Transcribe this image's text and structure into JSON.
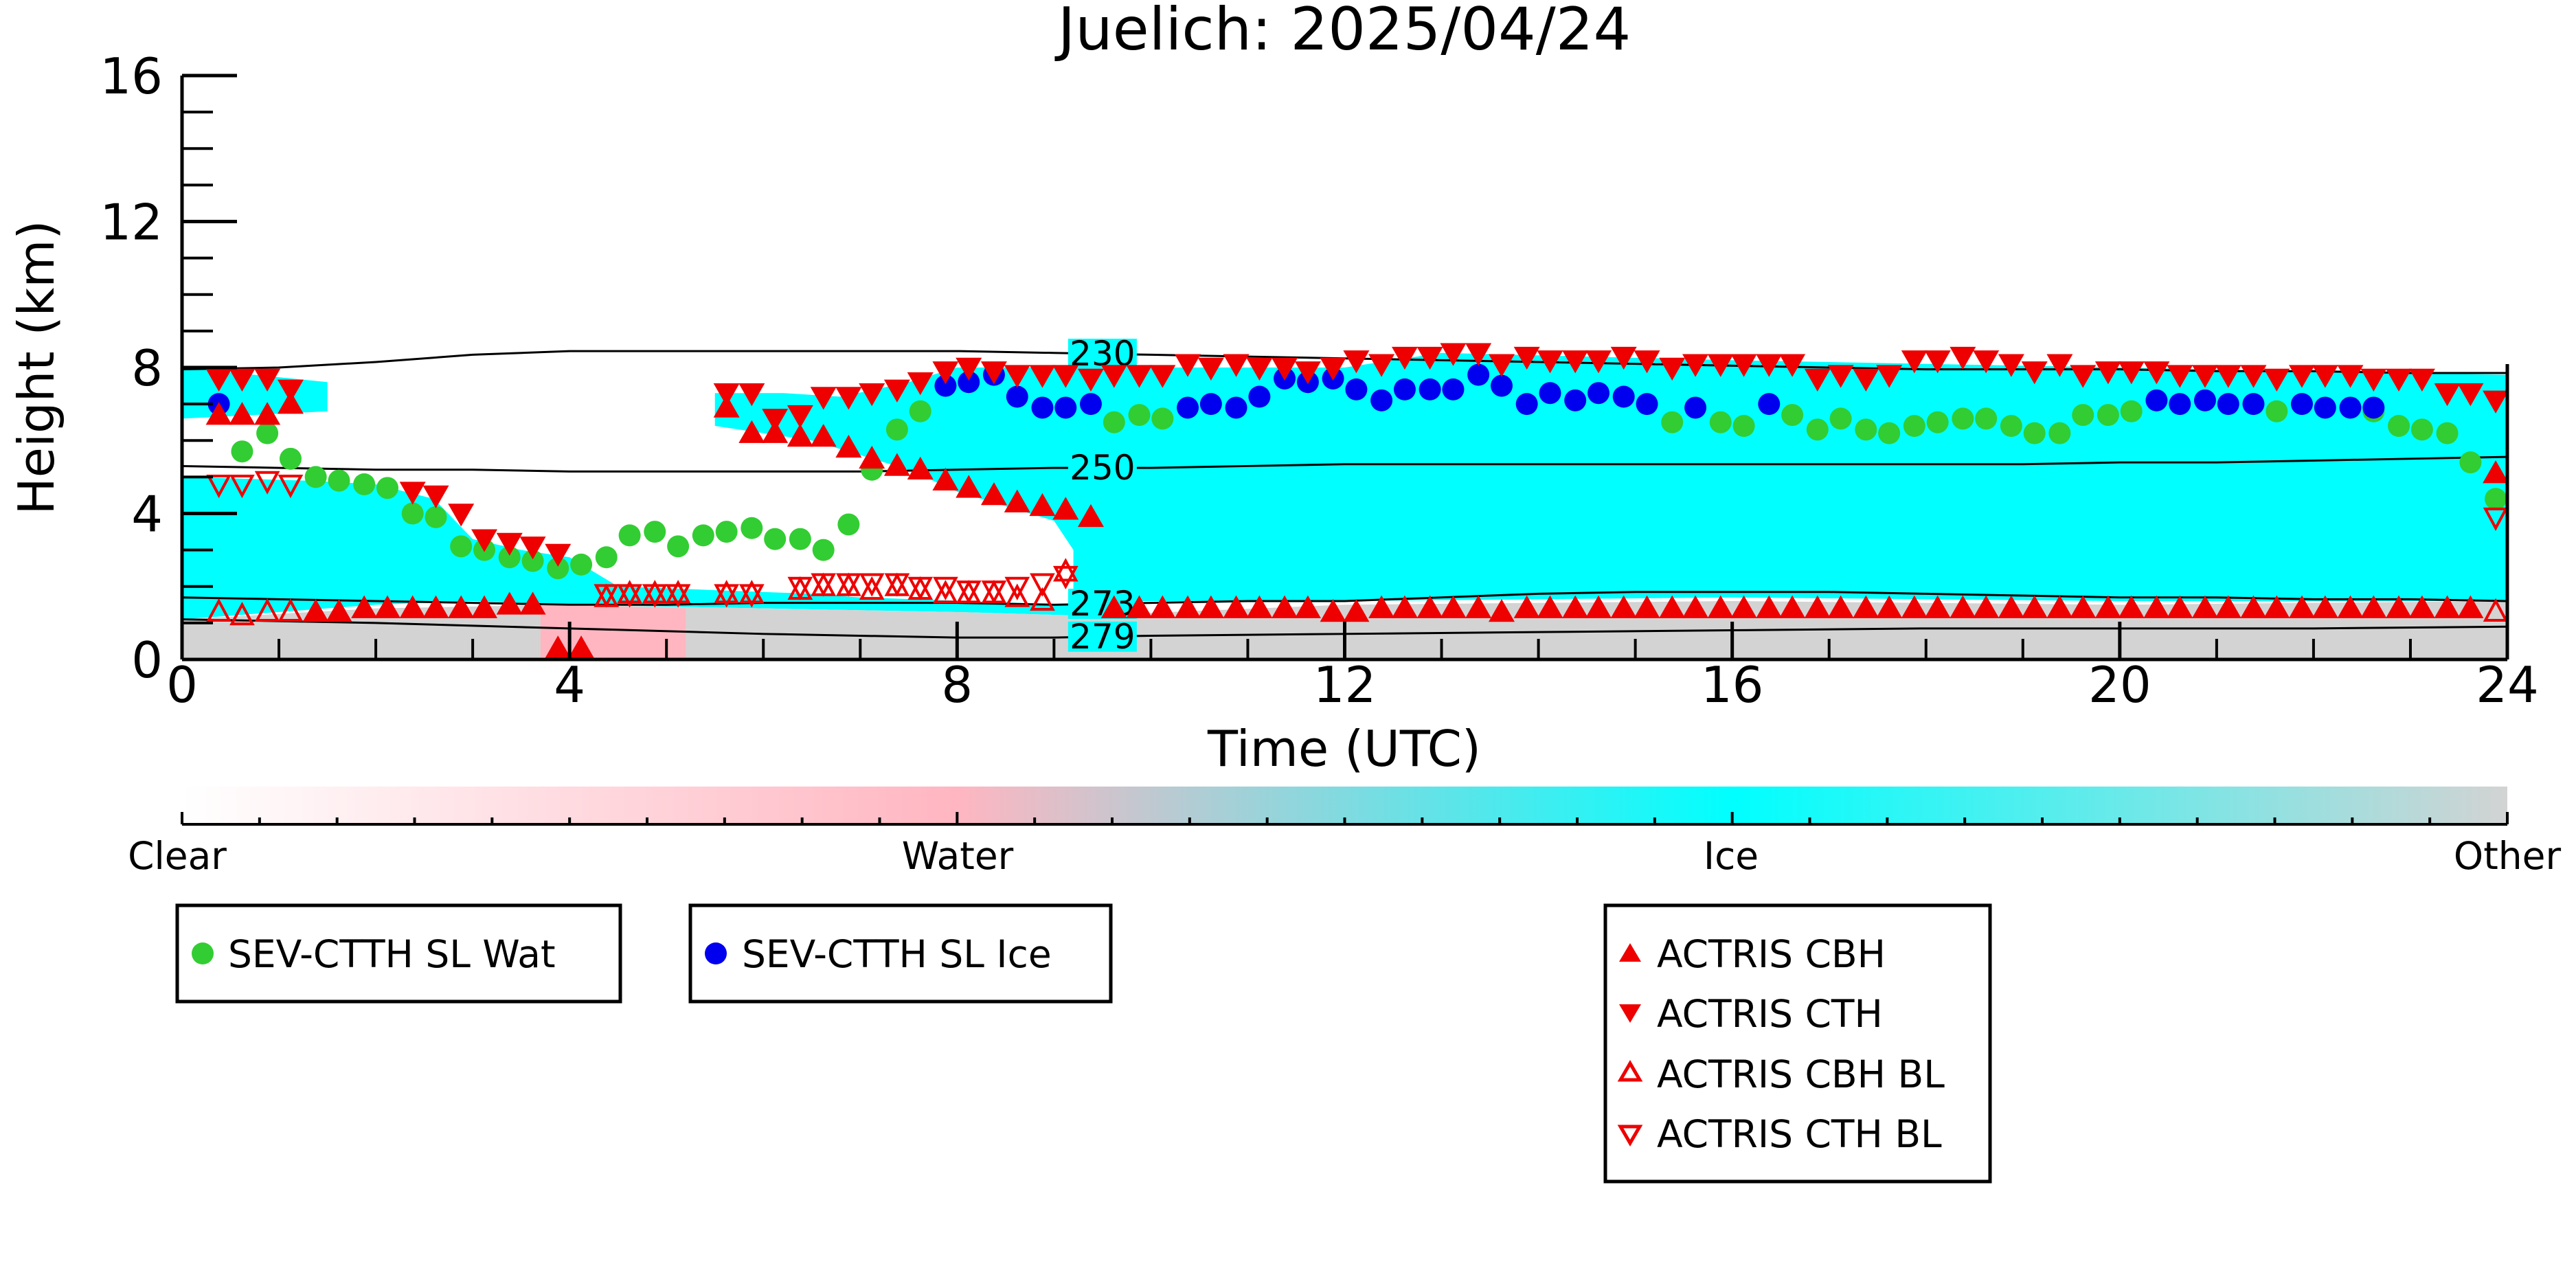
{
  "chart_data": {
    "type": "scatter",
    "title": "Juelich: 2025/04/24",
    "xlabel": "Time (UTC)",
    "ylabel": "Height (km)",
    "xlim": [
      0,
      24
    ],
    "ylim": [
      0,
      16
    ],
    "xticks": [
      0,
      4,
      8,
      12,
      16,
      20,
      24
    ],
    "yticks": [
      0,
      4,
      8,
      12,
      16
    ],
    "background_field": {
      "description_colors": {
        "Clear": "#ffffff",
        "Water": "#ffb6c1",
        "Ice": "#00ffff",
        "Other": "#d3d3d3"
      },
      "regions": [
        {
          "category": "Ice",
          "polygon": [
            [
              0,
              8.0
            ],
            [
              1.5,
              7.6
            ],
            [
              1.5,
              6.8
            ],
            [
              0,
              6.6
            ]
          ]
        },
        {
          "category": "Ice",
          "polygon": [
            [
              0,
              5.0
            ],
            [
              1.3,
              4.9
            ],
            [
              2.0,
              4.8
            ],
            [
              2.6,
              4.4
            ],
            [
              3.0,
              3.3
            ],
            [
              3.5,
              3.0
            ],
            [
              4.0,
              2.8
            ],
            [
              4.5,
              2.0
            ],
            [
              5.5,
              1.9
            ],
            [
              6.5,
              1.8
            ],
            [
              7.0,
              1.7
            ],
            [
              9.2,
              1.5
            ],
            [
              9.2,
              3.0
            ],
            [
              9.0,
              3.8
            ],
            [
              8.5,
              4.2
            ],
            [
              8.0,
              4.6
            ],
            [
              7.5,
              5.2
            ],
            [
              7.0,
              5.6
            ],
            [
              6.5,
              6.0
            ],
            [
              5.5,
              6.4
            ],
            [
              5.5,
              7.3
            ],
            [
              6.2,
              7.3
            ],
            [
              6.8,
              7.2
            ],
            [
              7.5,
              7.6
            ],
            [
              8.0,
              8.0
            ],
            [
              12,
              8.0
            ],
            [
              13,
              8.4
            ],
            [
              16,
              8.2
            ],
            [
              18,
              8.1
            ],
            [
              20,
              8.0
            ],
            [
              22,
              7.9
            ],
            [
              24,
              7.8
            ],
            [
              24,
              1.6
            ],
            [
              20,
              1.6
            ],
            [
              16,
              1.7
            ],
            [
              12,
              1.6
            ],
            [
              10,
              1.6
            ],
            [
              9.3,
              1.6
            ],
            [
              9.3,
              1.2
            ],
            [
              8,
              1.3
            ],
            [
              6,
              1.4
            ],
            [
              4,
              1.5
            ],
            [
              3,
              1.6
            ],
            [
              2,
              1.5
            ],
            [
              1,
              1.3
            ],
            [
              0,
              1.1
            ]
          ]
        },
        {
          "category": "Other",
          "polygon": [
            [
              0,
              1.1
            ],
            [
              2,
              1.4
            ],
            [
              4,
              1.5
            ],
            [
              6,
              1.4
            ],
            [
              8,
              1.3
            ],
            [
              9.3,
              1.2
            ],
            [
              12,
              1.5
            ],
            [
              16,
              1.6
            ],
            [
              20,
              1.5
            ],
            [
              24,
              1.6
            ],
            [
              24,
              0
            ],
            [
              0,
              0
            ]
          ]
        },
        {
          "category": "Water",
          "polygon": [
            [
              3.7,
              1.5
            ],
            [
              5.2,
              1.4
            ],
            [
              5.2,
              0
            ],
            [
              3.7,
              0
            ]
          ]
        }
      ]
    },
    "isotherms": [
      {
        "label": "230",
        "label_x": 9.5,
        "x": [
          0,
          1,
          2,
          3,
          4,
          5,
          6,
          7,
          8,
          9,
          10,
          11,
          12,
          13,
          14,
          15,
          16,
          17,
          18,
          19,
          20,
          21,
          22,
          23,
          24
        ],
        "y": [
          7.95,
          8.0,
          8.15,
          8.35,
          8.45,
          8.45,
          8.45,
          8.45,
          8.45,
          8.4,
          8.35,
          8.3,
          8.25,
          8.2,
          8.15,
          8.1,
          8.05,
          8.0,
          7.95,
          7.95,
          7.95,
          7.9,
          7.9,
          7.85,
          7.85
        ]
      },
      {
        "label": "250",
        "label_x": 9.5,
        "x": [
          0,
          1,
          2,
          3,
          4,
          5,
          6,
          7,
          8,
          9,
          10,
          11,
          12,
          13,
          14,
          15,
          16,
          17,
          18,
          19,
          20,
          21,
          22,
          23,
          24
        ],
        "y": [
          5.3,
          5.25,
          5.2,
          5.2,
          5.15,
          5.15,
          5.15,
          5.15,
          5.2,
          5.25,
          5.25,
          5.3,
          5.35,
          5.35,
          5.35,
          5.35,
          5.35,
          5.35,
          5.35,
          5.35,
          5.4,
          5.4,
          5.45,
          5.5,
          5.55
        ]
      },
      {
        "label": "273",
        "label_x": 9.5,
        "x": [
          0,
          1,
          2,
          3,
          4,
          5,
          6,
          7,
          8,
          9,
          10,
          11,
          12,
          13,
          14,
          15,
          16,
          17,
          18,
          19,
          20,
          21,
          22,
          23,
          24
        ],
        "y": [
          1.7,
          1.65,
          1.6,
          1.55,
          1.5,
          1.5,
          1.55,
          1.55,
          1.55,
          1.5,
          1.55,
          1.6,
          1.6,
          1.7,
          1.8,
          1.85,
          1.85,
          1.85,
          1.8,
          1.75,
          1.7,
          1.7,
          1.65,
          1.65,
          1.6
        ]
      },
      {
        "label": "279",
        "label_x": 9.5,
        "x": [
          0,
          2,
          4,
          6,
          8,
          9,
          10,
          12,
          14,
          16,
          18,
          20,
          22,
          24
        ],
        "y": [
          1.1,
          1.0,
          0.85,
          0.7,
          0.6,
          0.6,
          0.65,
          0.7,
          0.75,
          0.8,
          0.85,
          0.85,
          0.85,
          0.9
        ]
      }
    ],
    "series": [
      {
        "name": "SEV-CTTH SL Wat",
        "marker": "circle",
        "color": "#32cd32",
        "x": [
          0.62,
          0.88,
          1.12,
          1.38,
          1.62,
          1.88,
          2.12,
          2.38,
          2.62,
          2.88,
          3.12,
          3.38,
          3.62,
          3.88,
          4.12,
          4.38,
          4.62,
          4.88,
          5.12,
          5.38,
          5.62,
          5.88,
          6.12,
          6.38,
          6.62,
          6.88,
          7.12,
          7.38,
          7.62,
          9.62,
          9.88,
          10.12,
          15.38,
          15.88,
          16.12,
          16.62,
          16.88,
          17.12,
          17.38,
          17.62,
          17.88,
          18.12,
          18.38,
          18.62,
          18.88,
          19.12,
          19.38,
          19.62,
          19.88,
          20.12,
          21.62,
          22.62,
          22.88,
          23.12,
          23.38,
          23.62,
          23.88
        ],
        "y": [
          5.7,
          6.2,
          5.5,
          5.0,
          4.9,
          4.8,
          4.7,
          4.0,
          3.9,
          3.1,
          3.0,
          2.8,
          2.7,
          2.5,
          2.6,
          2.8,
          3.4,
          3.5,
          3.1,
          3.4,
          3.5,
          3.6,
          3.3,
          3.3,
          3.0,
          3.7,
          5.2,
          6.3,
          6.8,
          6.5,
          6.7,
          6.6,
          6.5,
          6.5,
          6.4,
          6.7,
          6.3,
          6.6,
          6.3,
          6.2,
          6.4,
          6.5,
          6.6,
          6.6,
          6.4,
          6.2,
          6.2,
          6.7,
          6.7,
          6.8,
          6.8,
          6.8,
          6.4,
          6.3,
          6.2,
          5.4,
          4.4
        ]
      },
      {
        "name": "SEV-CTTH SL Ice",
        "marker": "circle",
        "color": "#0000ee",
        "x": [
          0.38,
          7.88,
          8.12,
          8.38,
          8.62,
          8.88,
          9.12,
          9.38,
          10.38,
          10.62,
          10.88,
          11.12,
          11.38,
          11.62,
          11.88,
          12.12,
          12.38,
          12.62,
          12.88,
          13.12,
          13.38,
          13.62,
          13.88,
          14.12,
          14.38,
          14.62,
          14.88,
          15.12,
          15.62,
          16.38,
          20.38,
          20.62,
          20.88,
          21.12,
          21.38,
          21.88,
          22.12,
          22.38,
          22.62
        ],
        "y": [
          7.0,
          7.5,
          7.6,
          7.8,
          7.2,
          6.9,
          6.9,
          7.0,
          6.9,
          7.0,
          6.9,
          7.2,
          7.7,
          7.6,
          7.7,
          7.4,
          7.1,
          7.4,
          7.4,
          7.4,
          7.8,
          7.5,
          7.0,
          7.3,
          7.1,
          7.3,
          7.2,
          7.0,
          6.9,
          7.0,
          7.1,
          7.0,
          7.1,
          7.0,
          7.0,
          7.0,
          6.9,
          6.9,
          6.9
        ]
      },
      {
        "name": "ACTRIS CBH",
        "marker": "triangle-up",
        "color": "#ee0000",
        "x": [
          0.38,
          0.62,
          0.88,
          1.12,
          1.38,
          1.62,
          1.88,
          2.12,
          2.38,
          2.62,
          2.88,
          3.12,
          3.38,
          3.62,
          3.88,
          4.12,
          5.62,
          5.88,
          6.12,
          6.38,
          6.62,
          6.88,
          7.12,
          7.38,
          7.62,
          7.88,
          8.12,
          8.38,
          8.62,
          8.88,
          9.12,
          9.38,
          9.62,
          9.88,
          10.12,
          10.38,
          10.62,
          10.88,
          11.12,
          11.38,
          11.62,
          11.88,
          12.12,
          12.38,
          12.62,
          12.88,
          13.12,
          13.38,
          13.62,
          13.88,
          14.12,
          14.38,
          14.62,
          14.88,
          15.12,
          15.38,
          15.62,
          15.88,
          16.12,
          16.38,
          16.62,
          16.88,
          17.12,
          17.38,
          17.62,
          17.88,
          18.12,
          18.38,
          18.62,
          18.88,
          19.12,
          19.38,
          19.62,
          19.88,
          20.12,
          20.38,
          20.62,
          20.88,
          21.12,
          21.38,
          21.62,
          21.88,
          22.12,
          22.38,
          22.62,
          22.88,
          23.12,
          23.38,
          23.62,
          23.88
        ],
        "y": [
          6.7,
          6.7,
          6.7,
          7.0,
          1.3,
          1.3,
          1.4,
          1.4,
          1.4,
          1.4,
          1.4,
          1.4,
          1.5,
          1.5,
          0.3,
          0.3,
          6.9,
          6.2,
          6.2,
          6.1,
          6.1,
          5.8,
          5.5,
          5.3,
          5.2,
          4.9,
          4.7,
          4.5,
          4.3,
          4.2,
          4.1,
          3.9,
          1.4,
          1.4,
          1.4,
          1.4,
          1.4,
          1.4,
          1.4,
          1.4,
          1.4,
          1.3,
          1.3,
          1.4,
          1.4,
          1.4,
          1.4,
          1.4,
          1.3,
          1.4,
          1.4,
          1.4,
          1.4,
          1.4,
          1.4,
          1.4,
          1.4,
          1.4,
          1.4,
          1.4,
          1.4,
          1.4,
          1.4,
          1.4,
          1.4,
          1.4,
          1.4,
          1.4,
          1.4,
          1.4,
          1.4,
          1.4,
          1.4,
          1.4,
          1.4,
          1.4,
          1.4,
          1.4,
          1.4,
          1.4,
          1.4,
          1.4,
          1.4,
          1.4,
          1.4,
          1.4,
          1.4,
          1.4,
          1.4,
          5.1
        ]
      },
      {
        "name": "ACTRIS CTH",
        "marker": "triangle-down",
        "color": "#ee0000",
        "x": [
          0.38,
          0.62,
          0.88,
          1.12,
          2.38,
          2.62,
          2.88,
          3.12,
          3.38,
          3.62,
          3.88,
          5.62,
          5.88,
          6.12,
          6.38,
          6.62,
          6.88,
          7.12,
          7.38,
          7.62,
          7.88,
          8.12,
          8.38,
          8.62,
          8.88,
          9.12,
          9.38,
          9.62,
          9.88,
          10.12,
          10.38,
          10.62,
          10.88,
          11.12,
          11.38,
          11.62,
          11.88,
          12.12,
          12.38,
          12.62,
          12.88,
          13.12,
          13.38,
          13.62,
          13.88,
          14.12,
          14.38,
          14.62,
          14.88,
          15.12,
          15.38,
          15.62,
          15.88,
          16.12,
          16.38,
          16.62,
          16.88,
          17.12,
          17.38,
          17.62,
          17.88,
          18.12,
          18.38,
          18.62,
          18.88,
          19.12,
          19.38,
          19.62,
          19.88,
          20.12,
          20.38,
          20.62,
          20.88,
          21.12,
          21.38,
          21.62,
          21.88,
          22.12,
          22.38,
          22.62,
          22.88,
          23.12,
          23.38,
          23.62,
          23.88
        ],
        "y": [
          7.7,
          7.7,
          7.7,
          7.4,
          4.6,
          4.5,
          4.0,
          3.3,
          3.2,
          3.1,
          2.9,
          7.3,
          7.3,
          6.6,
          6.7,
          7.2,
          7.2,
          7.3,
          7.4,
          7.6,
          7.9,
          8.0,
          7.9,
          7.8,
          7.8,
          7.8,
          7.7,
          7.8,
          7.8,
          7.8,
          8.1,
          8.0,
          8.1,
          8.0,
          8.0,
          7.9,
          8.0,
          8.2,
          8.1,
          8.3,
          8.3,
          8.4,
          8.4,
          8.1,
          8.3,
          8.2,
          8.2,
          8.2,
          8.3,
          8.2,
          8.0,
          8.1,
          8.1,
          8.1,
          8.1,
          8.1,
          7.7,
          7.8,
          7.7,
          7.8,
          8.2,
          8.2,
          8.3,
          8.2,
          8.1,
          7.9,
          8.1,
          7.8,
          7.9,
          7.9,
          7.9,
          7.8,
          7.8,
          7.8,
          7.8,
          7.7,
          7.8,
          7.8,
          7.8,
          7.7,
          7.7,
          7.7,
          7.3,
          7.3,
          7.1
        ]
      },
      {
        "name": "ACTRIS CBH BL",
        "marker": "triangle-up-open",
        "color": "#ee0000",
        "x": [
          0.38,
          0.62,
          0.88,
          1.12,
          4.38,
          4.62,
          4.88,
          5.12,
          5.62,
          5.88,
          6.38,
          6.62,
          6.88,
          7.12,
          7.38,
          7.62,
          7.88,
          8.12,
          8.38,
          8.62,
          8.88,
          9.12,
          23.88
        ],
        "y": [
          1.3,
          1.2,
          1.3,
          1.3,
          1.7,
          1.8,
          1.8,
          1.8,
          1.8,
          1.8,
          1.9,
          2.0,
          2.0,
          1.9,
          2.0,
          1.9,
          1.8,
          1.8,
          1.8,
          1.7,
          1.6,
          2.4,
          1.3
        ]
      },
      {
        "name": "ACTRIS CTH BL",
        "marker": "triangle-down-open",
        "color": "#ee0000",
        "x": [
          0.38,
          0.62,
          0.88,
          1.12,
          4.38,
          4.62,
          4.88,
          5.12,
          5.62,
          5.88,
          6.38,
          6.62,
          6.88,
          7.12,
          7.38,
          7.62,
          7.88,
          8.12,
          8.38,
          8.62,
          8.88,
          9.12,
          23.88
        ],
        "y": [
          4.8,
          4.8,
          4.9,
          4.8,
          1.8,
          1.8,
          1.8,
          1.8,
          1.8,
          1.8,
          2.0,
          2.1,
          2.1,
          2.1,
          2.1,
          2.0,
          2.0,
          1.9,
          1.9,
          2.0,
          2.1,
          2.3,
          3.9
        ]
      }
    ],
    "colorbar": {
      "labels": [
        "Clear",
        "Water",
        "Ice",
        "Other"
      ],
      "stops": [
        "#ffffff",
        "#ffb6c1",
        "#00ffff",
        "#d3d3d3"
      ]
    },
    "legends": [
      {
        "entries": [
          "SEV-CTTH SL Wat"
        ]
      },
      {
        "entries": [
          "SEV-CTTH SL Ice"
        ]
      },
      {
        "entries": [
          "ACTRIS CBH",
          "ACTRIS CTH",
          "ACTRIS CBH BL",
          "ACTRIS CTH BL"
        ]
      }
    ]
  }
}
